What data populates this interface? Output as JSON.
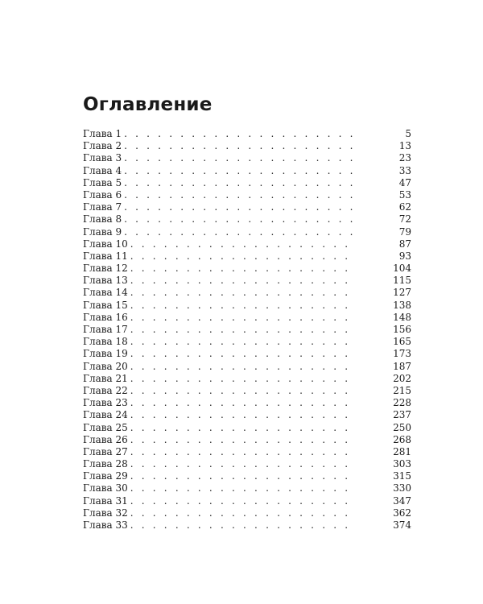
{
  "title": "Оглавление",
  "entries": [
    {
      "label": "Глава 1",
      "page": "5"
    },
    {
      "label": "Глава 2",
      "page": "13"
    },
    {
      "label": "Глава 3",
      "page": "23"
    },
    {
      "label": "Глава 4",
      "page": "33"
    },
    {
      "label": "Глава 5",
      "page": "47"
    },
    {
      "label": "Глава 6",
      "page": "53"
    },
    {
      "label": "Глава 7",
      "page": "62"
    },
    {
      "label": "Глава 8",
      "page": "72"
    },
    {
      "label": "Глава 9",
      "page": "79"
    },
    {
      "label": "Глава 10",
      "page": "87"
    },
    {
      "label": "Глава 11",
      "page": "93"
    },
    {
      "label": "Глава 12",
      "page": "104"
    },
    {
      "label": "Глава 13",
      "page": "115"
    },
    {
      "label": "Глава 14",
      "page": "127"
    },
    {
      "label": "Глава 15",
      "page": "138"
    },
    {
      "label": "Глава 16",
      "page": "148"
    },
    {
      "label": "Глава 17",
      "page": "156"
    },
    {
      "label": "Глава 18",
      "page": "165"
    },
    {
      "label": "Глава 19",
      "page": "173"
    },
    {
      "label": "Глава 20",
      "page": "187"
    },
    {
      "label": "Глава 21",
      "page": "202"
    },
    {
      "label": "Глава 22",
      "page": "215"
    },
    {
      "label": "Глава 23",
      "page": "228"
    },
    {
      "label": "Глава 24",
      "page": "237"
    },
    {
      "label": "Глава 25",
      "page": "250"
    },
    {
      "label": "Глава 26",
      "page": "268"
    },
    {
      "label": "Глава 27",
      "page": "281"
    },
    {
      "label": "Глава 28",
      "page": "303"
    },
    {
      "label": "Глава 29",
      "page": "315"
    },
    {
      "label": "Глава 30",
      "page": "330"
    },
    {
      "label": "Глава 31",
      "page": "347"
    },
    {
      "label": "Глава 32",
      "page": "362"
    },
    {
      "label": "Глава 33",
      "page": "374"
    }
  ]
}
